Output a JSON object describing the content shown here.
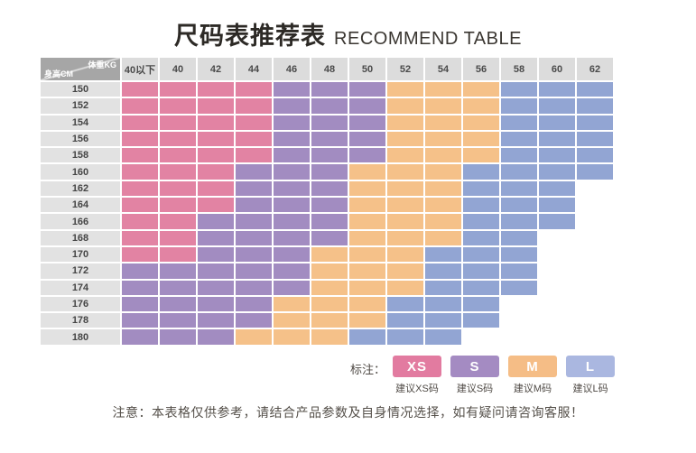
{
  "title": {
    "zh": "尺码表推荐表",
    "en": "RECOMMEND TABLE"
  },
  "legend": {
    "label": "标注：",
    "items": [
      {
        "code": "XS",
        "caption": "建议XS码",
        "color": "#e27ba0"
      },
      {
        "code": "S",
        "caption": "建议S码",
        "color": "#a48bc2"
      },
      {
        "code": "M",
        "caption": "建议M码",
        "color": "#f5bd86"
      },
      {
        "code": "L",
        "caption": "建议L码",
        "color": "#aab7e0"
      }
    ]
  },
  "note": "注意：本表格仅供参考，请结合产品参数及自身情况选择，如有疑问请咨询客服！",
  "chart_data": {
    "type": "heatmap",
    "title": "尺码表推荐表 RECOMMEND TABLE",
    "x_header": "体重KG",
    "y_header": "身高CM",
    "columns": [
      "40以下",
      "40",
      "42",
      "44",
      "46",
      "48",
      "50",
      "52",
      "54",
      "56",
      "58",
      "60",
      "62"
    ],
    "rows": [
      "150",
      "152",
      "154",
      "156",
      "158",
      "160",
      "162",
      "164",
      "166",
      "168",
      "170",
      "172",
      "174",
      "176",
      "178",
      "180"
    ],
    "cells": [
      [
        "XS",
        "XS",
        "XS",
        "XS",
        "S",
        "S",
        "S",
        "M",
        "M",
        "M",
        "L",
        "L",
        "L"
      ],
      [
        "XS",
        "XS",
        "XS",
        "XS",
        "S",
        "S",
        "S",
        "M",
        "M",
        "M",
        "L",
        "L",
        "L"
      ],
      [
        "XS",
        "XS",
        "XS",
        "XS",
        "S",
        "S",
        "S",
        "M",
        "M",
        "M",
        "L",
        "L",
        "L"
      ],
      [
        "XS",
        "XS",
        "XS",
        "XS",
        "S",
        "S",
        "S",
        "M",
        "M",
        "M",
        "L",
        "L",
        "L"
      ],
      [
        "XS",
        "XS",
        "XS",
        "XS",
        "S",
        "S",
        "S",
        "M",
        "M",
        "M",
        "L",
        "L",
        "L"
      ],
      [
        "XS",
        "XS",
        "XS",
        "S",
        "S",
        "S",
        "M",
        "M",
        "M",
        "L",
        "L",
        "L",
        "L"
      ],
      [
        "XS",
        "XS",
        "XS",
        "S",
        "S",
        "S",
        "M",
        "M",
        "M",
        "L",
        "L",
        "L",
        ""
      ],
      [
        "XS",
        "XS",
        "XS",
        "S",
        "S",
        "S",
        "M",
        "M",
        "M",
        "L",
        "L",
        "L",
        ""
      ],
      [
        "XS",
        "XS",
        "S",
        "S",
        "S",
        "S",
        "M",
        "M",
        "M",
        "L",
        "L",
        "L",
        ""
      ],
      [
        "XS",
        "XS",
        "S",
        "S",
        "S",
        "S",
        "M",
        "M",
        "M",
        "L",
        "L",
        "",
        ""
      ],
      [
        "XS",
        "XS",
        "S",
        "S",
        "S",
        "M",
        "M",
        "M",
        "L",
        "L",
        "L",
        "",
        ""
      ],
      [
        "S",
        "S",
        "S",
        "S",
        "S",
        "M",
        "M",
        "M",
        "L",
        "L",
        "L",
        "",
        ""
      ],
      [
        "S",
        "S",
        "S",
        "S",
        "S",
        "M",
        "M",
        "M",
        "L",
        "L",
        "L",
        "",
        ""
      ],
      [
        "S",
        "S",
        "S",
        "S",
        "M",
        "M",
        "M",
        "L",
        "L",
        "L",
        "",
        "",
        ""
      ],
      [
        "S",
        "S",
        "S",
        "S",
        "M",
        "M",
        "M",
        "L",
        "L",
        "L",
        "",
        "",
        ""
      ],
      [
        "S",
        "S",
        "S",
        "M",
        "M",
        "M",
        "L",
        "L",
        "L",
        "",
        "",
        "",
        ""
      ]
    ],
    "size_colors": {
      "XS": "#e283a3",
      "S": "#a28cc1",
      "M": "#f5c189",
      "L": "#92a5d3"
    },
    "legend_position": "bottom-right",
    "grid": true
  }
}
